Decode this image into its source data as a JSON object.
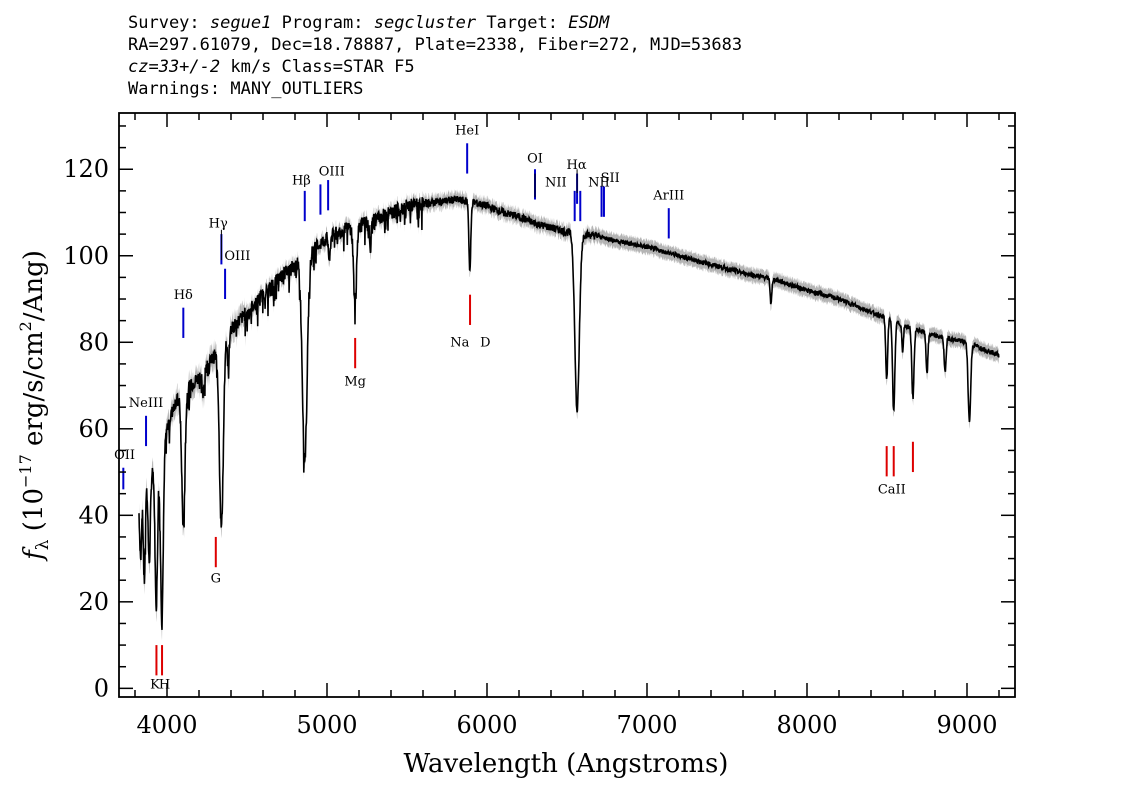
{
  "header": {
    "survey_label": "Survey:",
    "survey": "segue1",
    "program_label": "Program:",
    "program": "segcluster",
    "target_label": "Target:",
    "target": "ESDM",
    "line2": "RA=297.61079, Dec=18.78887, Plate=2338, Fiber=272, MJD=53683",
    "cz": "cz=33+/-2",
    "line3_rest": " km/s Class=STAR F5",
    "line4": "Warnings: MANY_OUTLIERS"
  },
  "chart_data": {
    "type": "line",
    "title": "",
    "xlabel": "Wavelength (Angstroms)",
    "ylabel_parts": [
      "f",
      "λ",
      " (10",
      "−17",
      " erg/s/cm",
      "2",
      "/Ang)"
    ],
    "xlim": [
      3700,
      9300
    ],
    "ylim": [
      -2,
      133
    ],
    "x_ticks": [
      4000,
      5000,
      6000,
      7000,
      8000,
      9000
    ],
    "y_ticks": [
      0,
      20,
      40,
      60,
      80,
      100,
      120
    ],
    "colors": {
      "spectrum": "#000000",
      "error_band": "#b4b4b4",
      "emission": "#0000cc",
      "absorption": "#dd0000",
      "label_tick": "#000000"
    },
    "continuum": [
      [
        3825,
        44
      ],
      [
        3900,
        50
      ],
      [
        3980,
        58
      ],
      [
        4050,
        66
      ],
      [
        4100,
        68
      ],
      [
        4200,
        72
      ],
      [
        4300,
        77
      ],
      [
        4400,
        83
      ],
      [
        4500,
        87
      ],
      [
        4600,
        91
      ],
      [
        4700,
        95
      ],
      [
        4800,
        98
      ],
      [
        4900,
        101
      ],
      [
        5000,
        104
      ],
      [
        5100,
        106
      ],
      [
        5200,
        107
      ],
      [
        5300,
        108.5
      ],
      [
        5400,
        110
      ],
      [
        5500,
        111.5
      ],
      [
        5600,
        112
      ],
      [
        5700,
        112.5
      ],
      [
        5800,
        113
      ],
      [
        5900,
        112.5
      ],
      [
        6000,
        111.5
      ],
      [
        6100,
        110
      ],
      [
        6200,
        109
      ],
      [
        6300,
        107.5
      ],
      [
        6400,
        106.5
      ],
      [
        6500,
        105.5
      ],
      [
        6600,
        105
      ],
      [
        6700,
        104.5
      ],
      [
        6800,
        103.5
      ],
      [
        7000,
        102
      ],
      [
        7200,
        100
      ],
      [
        7400,
        98
      ],
      [
        7600,
        96
      ],
      [
        7800,
        94.5
      ],
      [
        8000,
        92
      ],
      [
        8200,
        90
      ],
      [
        8400,
        87
      ],
      [
        8600,
        84
      ],
      [
        8800,
        81.5
      ],
      [
        9000,
        80
      ],
      [
        9200,
        77
      ]
    ],
    "absorption_dips": [
      {
        "x": 3835,
        "depth": 14,
        "width": 6
      },
      {
        "x": 3858,
        "depth": 22,
        "width": 6
      },
      {
        "x": 3889,
        "depth": 20,
        "width": 7
      },
      {
        "x": 3933,
        "depth": 34,
        "width": 8
      },
      {
        "x": 3968,
        "depth": 40,
        "width": 9
      },
      {
        "x": 4102,
        "depth": 30,
        "width": 10
      },
      {
        "x": 4226,
        "depth": 6,
        "width": 5
      },
      {
        "x": 4340,
        "depth": 42,
        "width": 12
      },
      {
        "x": 4383,
        "depth": 8,
        "width": 5
      },
      {
        "x": 4861,
        "depth": 47,
        "width": 15
      },
      {
        "x": 5015,
        "depth": 6,
        "width": 5
      },
      {
        "x": 5175,
        "depth": 18,
        "width": 9
      },
      {
        "x": 5270,
        "depth": 7,
        "width": 5
      },
      {
        "x": 5893,
        "depth": 16,
        "width": 6
      },
      {
        "x": 6563,
        "depth": 41,
        "width": 14
      },
      {
        "x": 7775,
        "depth": 6,
        "width": 5
      },
      {
        "x": 8498,
        "depth": 14,
        "width": 6
      },
      {
        "x": 8542,
        "depth": 21,
        "width": 7
      },
      {
        "x": 8598,
        "depth": 6,
        "width": 5
      },
      {
        "x": 8662,
        "depth": 16,
        "width": 7
      },
      {
        "x": 8750,
        "depth": 9,
        "width": 6
      },
      {
        "x": 8863,
        "depth": 8,
        "width": 6
      },
      {
        "x": 9015,
        "depth": 18,
        "width": 8
      },
      {
        "x": 9230,
        "depth": 5,
        "width": 6
      }
    ],
    "emission_lines": [
      {
        "label": "OII",
        "wave": 3727,
        "y1": 46,
        "y2": 51,
        "lx": 3735,
        "ly": 53
      },
      {
        "label": "NeIII",
        "wave": 3869,
        "y1": 56,
        "y2": 63,
        "lx": 3869,
        "ly": 65
      },
      {
        "label": "Hδ",
        "wave": 4102,
        "y1": 81,
        "y2": 88,
        "lx": 4102,
        "ly": 90
      },
      {
        "label": "Hγ",
        "wave": 4340,
        "y1": 98,
        "y2": 105,
        "lx": 4320,
        "ly": 106.5
      },
      {
        "label": "OIII",
        "wave": 4363,
        "y1": 90,
        "y2": 97,
        "lx": 4440,
        "ly": 99
      },
      {
        "label": "Hβ",
        "wave": 4861,
        "y1": 108,
        "y2": 115,
        "lx": 4840,
        "ly": 116.5
      },
      {
        "label": "OIII",
        "wave": 4959,
        "y1": 109.5,
        "y2": 116.5,
        "lx": 5030,
        "ly": 118.5
      },
      {
        "label": "OIII",
        "wave": 5007,
        "y1": 110.5,
        "y2": 117.5,
        "lx": "",
        "ly": ""
      },
      {
        "label": "HeI",
        "wave": 5876,
        "y1": 119,
        "y2": 126,
        "lx": 5876,
        "ly": 128
      },
      {
        "label": "OI",
        "wave": 6300,
        "y1": 113,
        "y2": 120,
        "lx": 6300,
        "ly": 121.5
      },
      {
        "label": "NII",
        "wave": 6548,
        "y1": 108,
        "y2": 115,
        "lx": 6430,
        "ly": 116
      },
      {
        "label": "Hα",
        "wave": 6563,
        "y1": 112,
        "y2": 119,
        "lx": 6560,
        "ly": 120
      },
      {
        "label": "NII",
        "wave": 6583,
        "y1": 108,
        "y2": 115,
        "lx": 6700,
        "ly": 116
      },
      {
        "label": "SII",
        "wave": 6716,
        "y1": 109,
        "y2": 116,
        "lx": 6770,
        "ly": 117
      },
      {
        "label": "SII",
        "wave": 6731,
        "y1": 109,
        "y2": 116,
        "lx": "",
        "ly": ""
      },
      {
        "label": "ArIII",
        "wave": 7136,
        "y1": 104,
        "y2": 111,
        "lx": 7136,
        "ly": 113
      }
    ],
    "absorption_lines": [
      {
        "label": "K",
        "wave": 3934,
        "y1": 3,
        "y2": 10,
        "lx": 3925,
        "ly": 0
      },
      {
        "label": "H",
        "wave": 3969,
        "y1": 3,
        "y2": 10,
        "lx": 3985,
        "ly": 0
      },
      {
        "label": "G",
        "wave": 4305,
        "y1": 28,
        "y2": 35,
        "lx": 4305,
        "ly": 24.5
      },
      {
        "label": "Mg",
        "wave": 5176,
        "y1": 74,
        "y2": 81,
        "lx": 5176,
        "ly": 70
      },
      {
        "label": "Na",
        "wave": 5894,
        "y1": 84,
        "y2": 91,
        "lx": 5830,
        "ly": 79
      },
      {
        "label": "D",
        "wave": "",
        "y1": "",
        "y2": "",
        "lx": 5990,
        "ly": 79
      },
      {
        "label": "CaII",
        "wave": 8498,
        "y1": 49,
        "y2": 56,
        "lx": 8530,
        "ly": 45
      },
      {
        "label": "",
        "wave": 8542,
        "y1": 49,
        "y2": 56,
        "lx": "",
        "ly": ""
      },
      {
        "label": "",
        "wave": 8662,
        "y1": 50,
        "y2": 57,
        "lx": "",
        "ly": ""
      }
    ]
  }
}
